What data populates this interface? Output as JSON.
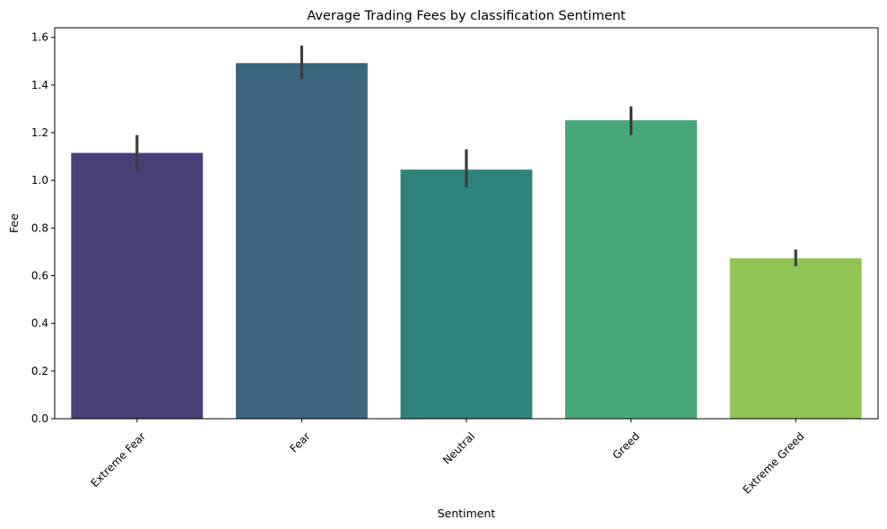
{
  "chart_data": {
    "type": "bar",
    "title": "Average Trading Fees by classification Sentiment",
    "xlabel": "Sentiment",
    "ylabel": "Fee",
    "categories": [
      "Extreme Fear",
      "Fear",
      "Neutral",
      "Greed",
      "Extreme Greed"
    ],
    "values": [
      1.115,
      1.492,
      1.045,
      1.252,
      0.673
    ],
    "error_low": [
      1.04,
      1.425,
      0.97,
      1.19,
      0.64
    ],
    "error_high": [
      1.19,
      1.565,
      1.13,
      1.31,
      0.71
    ],
    "colors": [
      "#4a3f78",
      "#3c6680",
      "#2e837d",
      "#48a878",
      "#8fc454"
    ],
    "ylim": [
      0,
      1.64
    ],
    "yticks": [
      0.0,
      0.2,
      0.4,
      0.6,
      0.8,
      1.0,
      1.2,
      1.4,
      1.6
    ],
    "ytick_labels": [
      "0.0",
      "0.2",
      "0.4",
      "0.6",
      "0.8",
      "1.0",
      "1.2",
      "1.4",
      "1.6"
    ],
    "xtick_rotation": 45,
    "grid": false,
    "legend": "none"
  }
}
